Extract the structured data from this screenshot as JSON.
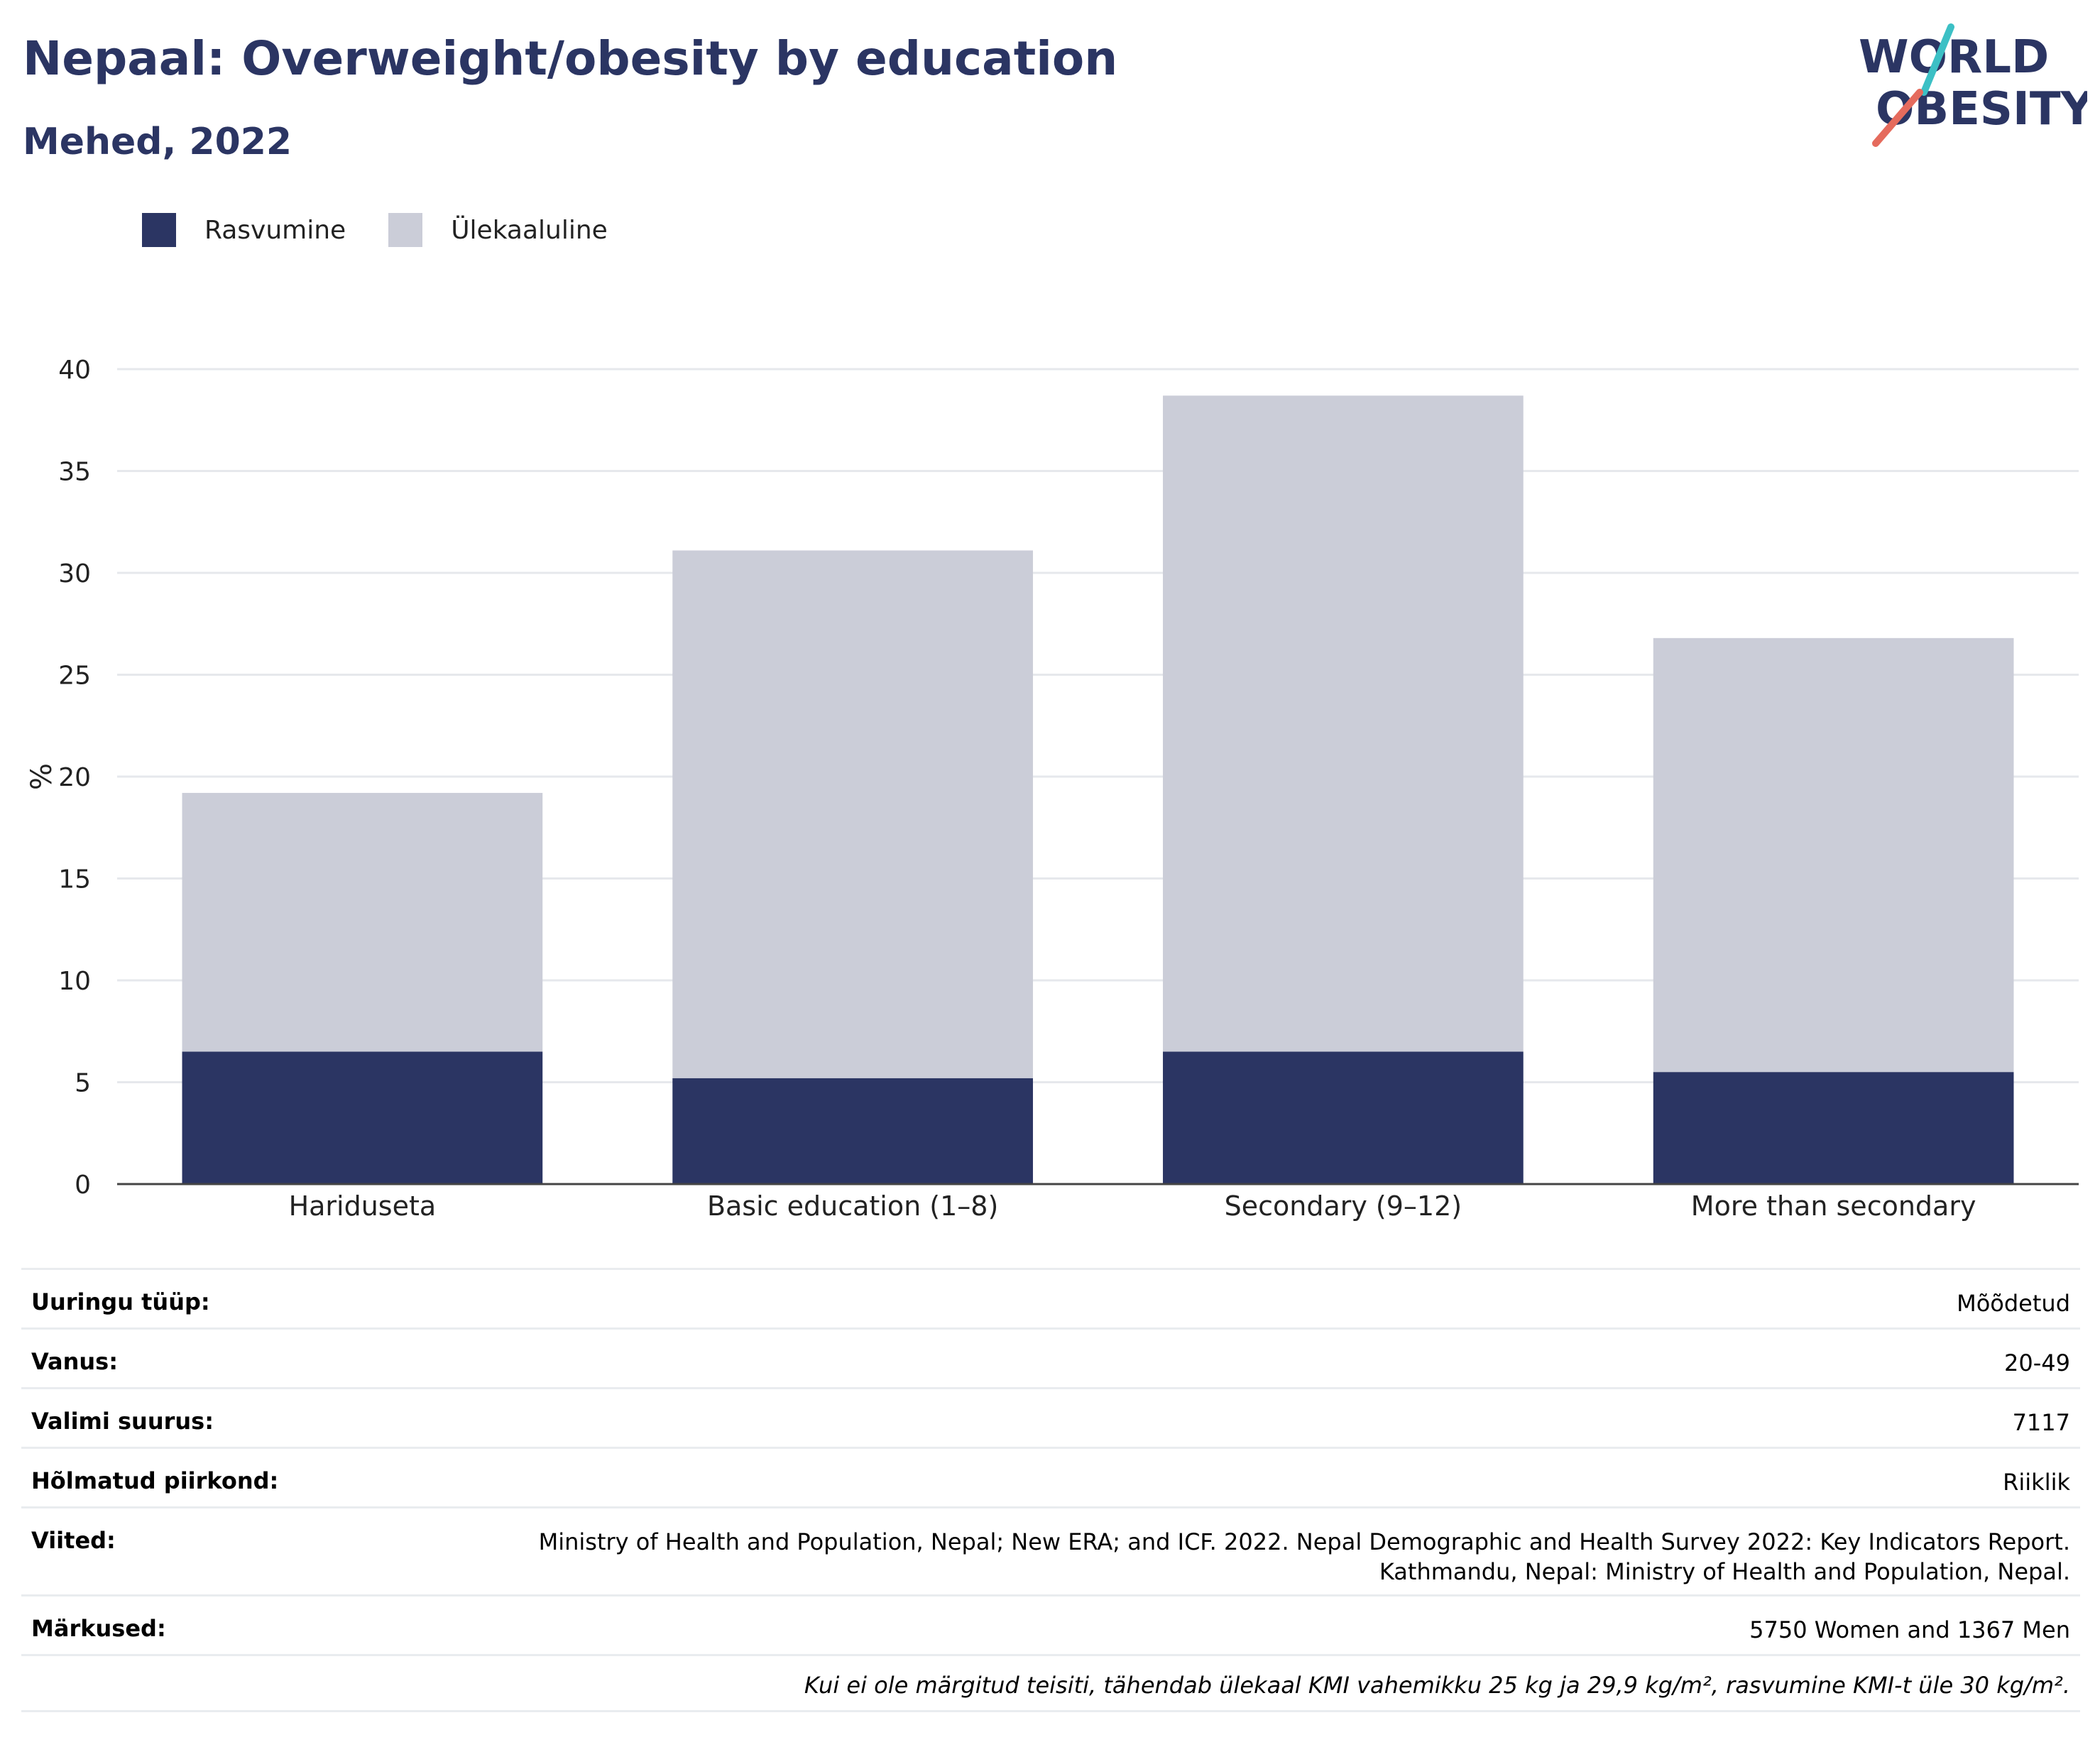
{
  "header": {
    "title": "Nepaal: Overweight/obesity by education",
    "subtitle": "Mehed, 2022",
    "logo_line1": "WORLD",
    "logo_line2": "OBESITY"
  },
  "legend": {
    "items": [
      {
        "label": "Rasvumine",
        "color": "#2b3563"
      },
      {
        "label": "Ülekaaluline",
        "color": "#cbcdd8"
      }
    ]
  },
  "chart_data": {
    "type": "bar",
    "stacked": true,
    "categories": [
      "Hariduseta",
      "Basic education (1–8)",
      "Secondary (9–12)",
      "More than secondary"
    ],
    "series": [
      {
        "name": "Rasvumine",
        "values": [
          6.5,
          5.2,
          6.5,
          5.5
        ],
        "color": "#2b3563"
      },
      {
        "name": "Ülekaaluline",
        "values": [
          12.7,
          25.9,
          32.2,
          21.3
        ],
        "color": "#cbcdd8"
      }
    ],
    "ylabel": "%",
    "ylim": [
      0,
      40
    ],
    "yticks": [
      0,
      5,
      10,
      15,
      20,
      25,
      30,
      35,
      40
    ],
    "grid": true,
    "legend_position": "top-left"
  },
  "info": {
    "rows": [
      {
        "label": "Uuringu tüüp:",
        "value": [
          "Mõõdetud"
        ]
      },
      {
        "label": "Vanus:",
        "value": [
          "20-49"
        ]
      },
      {
        "label": "Valimi suurus:",
        "value": [
          "7117"
        ]
      },
      {
        "label": "Hõlmatud piirkond:",
        "value": [
          "Riiklik"
        ]
      },
      {
        "label": "Viited:",
        "value": [
          "Ministry of Health and Population, Nepal; New ERA; and ICF. 2022. Nepal Demographic and Health Survey 2022: Key Indicators Report.",
          "Kathmandu, Nepal: Ministry of Health and Population, Nepal."
        ]
      },
      {
        "label": "Märkused:",
        "value": [
          "5750 Women and 1367 Men"
        ]
      }
    ],
    "note": "Kui ei ole märgitud teisiti, tähendab ülekaal KMI vahemikku 25 kg ja 29,9 kg/m², rasvumine KMI-t üle 30 kg/m²."
  }
}
